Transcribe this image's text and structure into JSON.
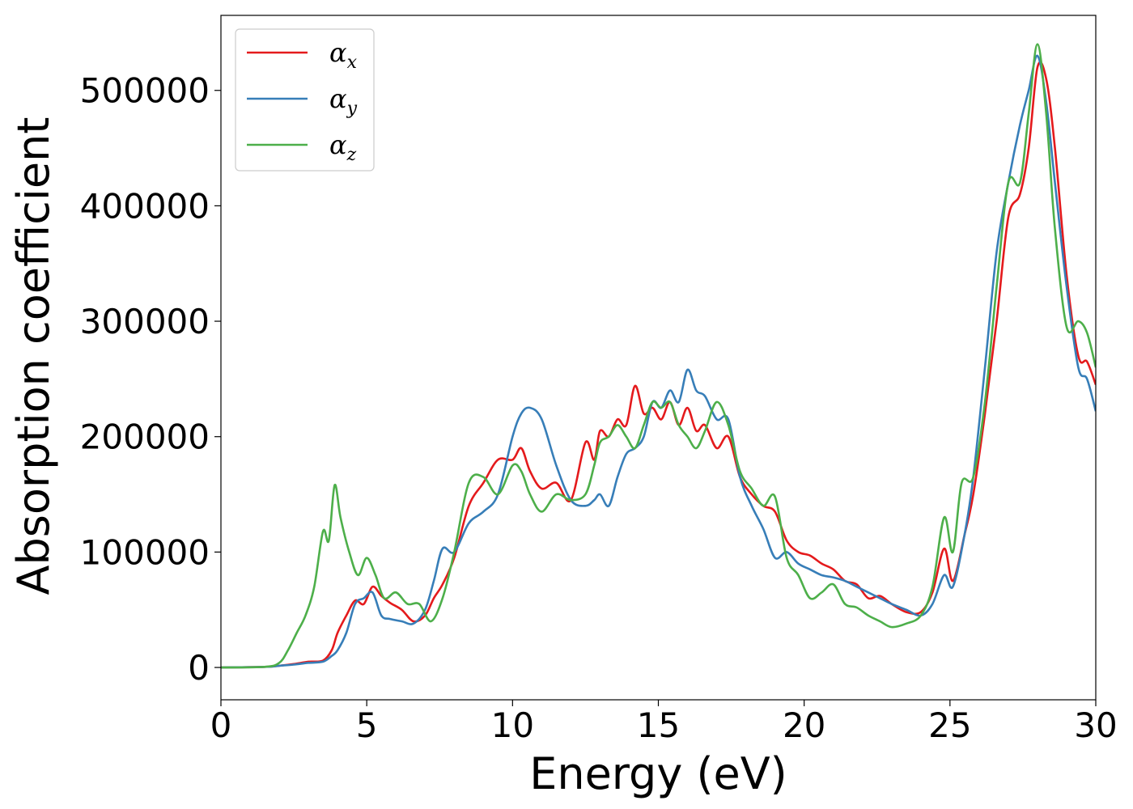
{
  "chart_data": {
    "type": "line",
    "title": "",
    "xlabel": "Energy (eV)",
    "ylabel": "Absorption coefficient",
    "xlim": [
      0,
      30
    ],
    "ylim": [
      -28000,
      565000
    ],
    "xticks": [
      0,
      5,
      10,
      15,
      20,
      25,
      30
    ],
    "xtick_labels": [
      "0",
      "5",
      "10",
      "15",
      "20",
      "25",
      "30"
    ],
    "yticks": [
      0,
      100000,
      200000,
      300000,
      400000,
      500000
    ],
    "ytick_labels": [
      "0",
      "100000",
      "200000",
      "300000",
      "400000",
      "500000"
    ],
    "grid": false,
    "legend_position": "top-left",
    "series": [
      {
        "name": "α",
        "subscript": "x",
        "color": "#e41a1c",
        "x": [
          0,
          1.5,
          2,
          2.5,
          3,
          3.5,
          3.8,
          4,
          4.3,
          4.6,
          4.9,
          5.2,
          5.5,
          5.8,
          6.2,
          6.6,
          7,
          7.3,
          7.6,
          8,
          8.5,
          9,
          9.5,
          10,
          10.3,
          10.6,
          11,
          11.5,
          12,
          12.5,
          12.8,
          13,
          13.3,
          13.6,
          13.9,
          14.2,
          14.5,
          14.8,
          15.1,
          15.4,
          15.7,
          16,
          16.3,
          16.6,
          17,
          17.4,
          17.8,
          18.2,
          18.6,
          19,
          19.4,
          19.8,
          20.2,
          20.6,
          21,
          21.4,
          21.8,
          22.2,
          22.6,
          23,
          23.5,
          24,
          24.4,
          24.8,
          25.1,
          25.5,
          25.8,
          26.2,
          26.6,
          27,
          27.4,
          27.7,
          28,
          28.3,
          28.6,
          29,
          29.4,
          29.7,
          30
        ],
        "y": [
          0,
          500,
          1500,
          3000,
          5000,
          6000,
          15000,
          30000,
          45000,
          58000,
          55000,
          70000,
          62000,
          56000,
          50000,
          40000,
          45000,
          60000,
          72000,
          95000,
          140000,
          160000,
          180000,
          180000,
          190000,
          170000,
          155000,
          160000,
          145000,
          195000,
          180000,
          205000,
          200000,
          215000,
          210000,
          244000,
          220000,
          225000,
          215000,
          230000,
          210000,
          225000,
          205000,
          210000,
          190000,
          200000,
          165000,
          150000,
          140000,
          135000,
          110000,
          100000,
          97000,
          90000,
          85000,
          75000,
          72000,
          60000,
          62000,
          55000,
          48000,
          48000,
          65000,
          103000,
          75000,
          115000,
          150000,
          220000,
          300000,
          390000,
          410000,
          450000,
          520000,
          510000,
          450000,
          340000,
          270000,
          265000,
          245000
        ]
      },
      {
        "name": "α",
        "subscript": "y",
        "color": "#377eb8",
        "x": [
          0,
          1.5,
          2,
          2.5,
          3,
          3.5,
          3.8,
          4,
          4.3,
          4.6,
          4.9,
          5.2,
          5.5,
          5.8,
          6.2,
          6.6,
          7,
          7.3,
          7.6,
          8,
          8.5,
          9,
          9.5,
          10,
          10.3,
          10.6,
          11,
          11.5,
          12,
          12.5,
          12.8,
          13,
          13.3,
          13.6,
          13.9,
          14.2,
          14.5,
          14.8,
          15.1,
          15.4,
          15.7,
          16,
          16.3,
          16.6,
          17,
          17.4,
          17.8,
          18.2,
          18.6,
          19,
          19.4,
          19.8,
          20.2,
          20.6,
          21,
          21.4,
          21.8,
          22.2,
          22.6,
          23,
          23.5,
          24,
          24.4,
          24.8,
          25.1,
          25.5,
          25.8,
          26.2,
          26.6,
          27,
          27.4,
          27.7,
          28,
          28.3,
          28.6,
          29,
          29.4,
          29.7,
          30
        ],
        "y": [
          0,
          500,
          1500,
          2500,
          4000,
          5000,
          10000,
          15000,
          30000,
          55000,
          60000,
          65000,
          45000,
          42000,
          40000,
          38000,
          50000,
          75000,
          103000,
          100000,
          125000,
          135000,
          150000,
          200000,
          220000,
          225000,
          215000,
          175000,
          145000,
          140000,
          145000,
          150000,
          140000,
          165000,
          185000,
          190000,
          200000,
          230000,
          225000,
          240000,
          230000,
          258000,
          240000,
          235000,
          215000,
          215000,
          165000,
          140000,
          120000,
          95000,
          100000,
          90000,
          85000,
          80000,
          78000,
          75000,
          70000,
          65000,
          60000,
          55000,
          50000,
          45000,
          55000,
          80000,
          70000,
          115000,
          165000,
          260000,
          360000,
          420000,
          470000,
          500000,
          530000,
          490000,
          420000,
          330000,
          260000,
          250000,
          222000
        ]
      },
      {
        "name": "α",
        "subscript": "z",
        "color": "#4daf4a",
        "x": [
          0,
          1.5,
          2,
          2.3,
          2.6,
          2.9,
          3.2,
          3.5,
          3.7,
          3.9,
          4.1,
          4.4,
          4.7,
          5,
          5.3,
          5.6,
          6,
          6.4,
          6.8,
          7.2,
          7.6,
          8,
          8.5,
          9,
          9.5,
          10,
          10.3,
          10.6,
          11,
          11.5,
          12,
          12.5,
          12.8,
          13,
          13.3,
          13.6,
          13.9,
          14.2,
          14.5,
          14.8,
          15.1,
          15.4,
          15.7,
          16,
          16.3,
          16.6,
          17,
          17.4,
          17.8,
          18.2,
          18.6,
          19,
          19.4,
          19.8,
          20.2,
          20.6,
          21,
          21.4,
          21.8,
          22.2,
          22.6,
          23,
          23.5,
          24,
          24.4,
          24.8,
          25.1,
          25.4,
          25.8,
          26.2,
          26.6,
          27,
          27.4,
          27.7,
          28,
          28.3,
          28.6,
          29,
          29.4,
          29.7,
          30
        ],
        "y": [
          0,
          500,
          4000,
          15000,
          30000,
          45000,
          70000,
          118000,
          110000,
          158000,
          130000,
          100000,
          80000,
          95000,
          80000,
          60000,
          65000,
          55000,
          55000,
          40000,
          60000,
          100000,
          160000,
          165000,
          150000,
          175000,
          170000,
          150000,
          135000,
          150000,
          145000,
          150000,
          175000,
          195000,
          200000,
          210000,
          200000,
          190000,
          210000,
          230000,
          225000,
          230000,
          210000,
          200000,
          190000,
          205000,
          230000,
          210000,
          170000,
          155000,
          140000,
          148000,
          95000,
          80000,
          60000,
          65000,
          72000,
          55000,
          52000,
          45000,
          40000,
          35000,
          38000,
          45000,
          70000,
          130000,
          100000,
          160000,
          165000,
          230000,
          330000,
          420000,
          420000,
          480000,
          540000,
          480000,
          380000,
          295000,
          300000,
          290000,
          260000
        ]
      }
    ]
  }
}
